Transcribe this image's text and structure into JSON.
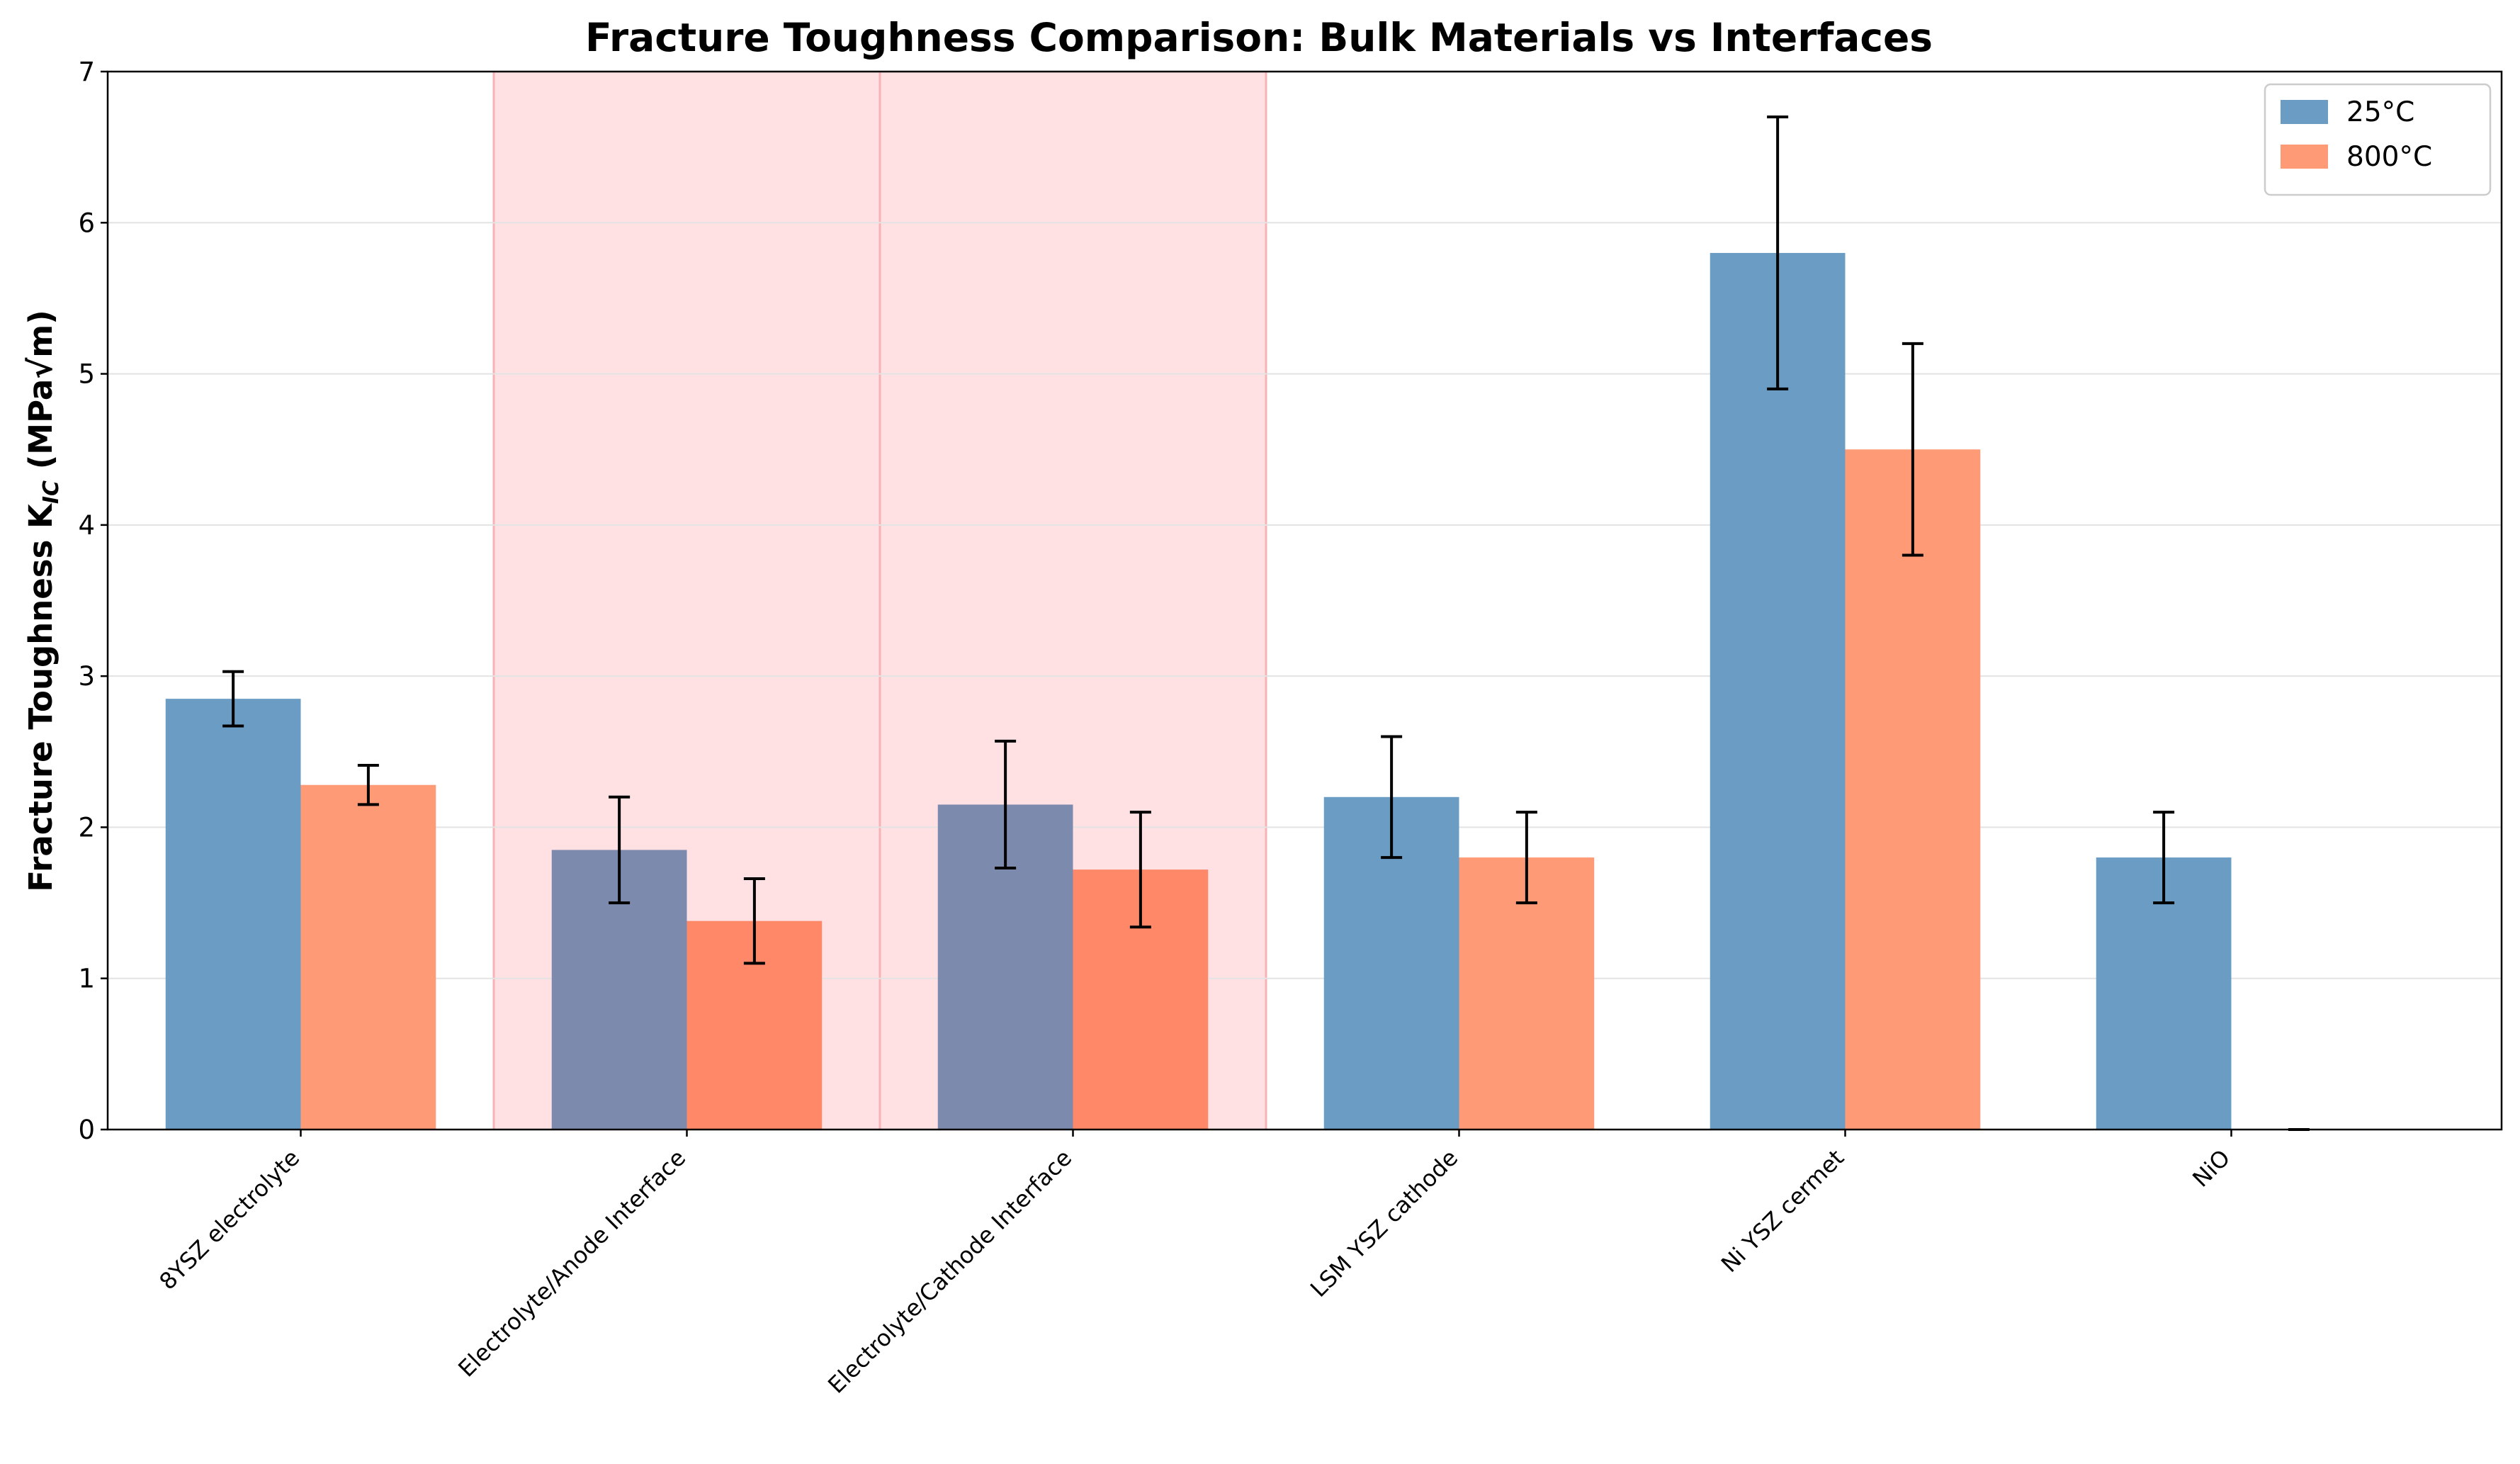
{
  "chart_data": {
    "type": "bar",
    "title": "Fracture Toughness Comparison: Bulk Materials vs Interfaces",
    "xlabel": "",
    "ylabel": "Fracture Toughness K",
    "ylabel_subscript": "IC",
    "ylabel_unit": " (MPa√m)",
    "ylim": [
      0,
      7
    ],
    "yticks": [
      "0",
      "1",
      "2",
      "3",
      "4",
      "5",
      "6",
      "7"
    ],
    "grid": "horizontal",
    "legend_position": "top-right",
    "categories": [
      "8YSZ electrolyte",
      "Electrolyte/Anode Interface",
      "Electrolyte/Cathode Interface",
      "LSM YSZ cathode",
      "Ni YSZ cermet",
      "NiO"
    ],
    "highlighted_categories": [
      1,
      2
    ],
    "series": [
      {
        "name": "25°C",
        "color": "#6a9cc4",
        "highlight_color": "#7c8aae",
        "values": [
          2.85,
          1.85,
          2.15,
          2.2,
          5.8,
          1.8
        ],
        "errors": [
          0.18,
          0.35,
          0.42,
          0.4,
          0.9,
          0.3
        ]
      },
      {
        "name": "800°C",
        "color": "#fe9a76",
        "highlight_color": "#fe8868",
        "values": [
          2.28,
          1.38,
          1.72,
          1.8,
          4.5,
          0
        ],
        "errors": [
          0.13,
          0.28,
          0.38,
          0.3,
          0.7,
          0
        ]
      }
    ],
    "highlight_band_color": "#ffdcdf",
    "highlight_divider_color": "#f6b2b5"
  }
}
